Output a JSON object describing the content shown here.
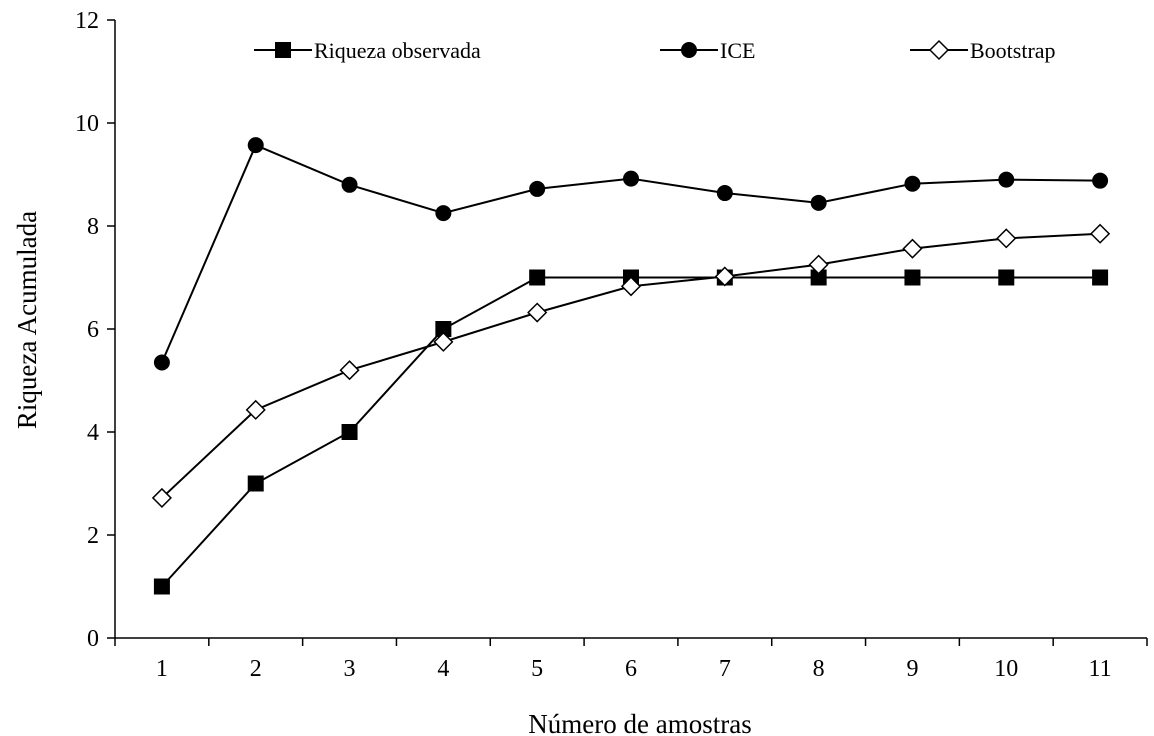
{
  "chart_data": {
    "type": "line",
    "title": "",
    "xlabel": "Número de amostras",
    "ylabel": "Riqueza Acumulada",
    "categories": [
      "1",
      "2",
      "3",
      "4",
      "5",
      "6",
      "7",
      "8",
      "9",
      "10",
      "11"
    ],
    "ylim": [
      0,
      12
    ],
    "yticks": [
      "0",
      "2",
      "4",
      "6",
      "8",
      "10",
      "12"
    ],
    "grid": false,
    "legend_position": "top",
    "series": [
      {
        "name": "Riqueza observada",
        "marker": "filled-square",
        "color": "#000000",
        "values": [
          1,
          3,
          4,
          6,
          7,
          7,
          7,
          7,
          7,
          7,
          7
        ]
      },
      {
        "name": "ICE",
        "marker": "filled-circle",
        "color": "#000000",
        "values": [
          5.35,
          9.57,
          8.8,
          8.25,
          8.72,
          8.92,
          8.64,
          8.45,
          8.82,
          8.9,
          8.88
        ]
      },
      {
        "name": "Bootstrap",
        "marker": "open-diamond",
        "color": "#000000",
        "values": [
          2.72,
          4.43,
          5.2,
          5.75,
          6.32,
          6.83,
          7.02,
          7.25,
          7.56,
          7.76,
          7.85
        ]
      }
    ]
  }
}
